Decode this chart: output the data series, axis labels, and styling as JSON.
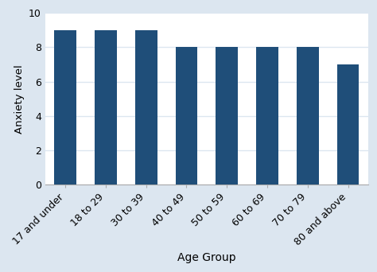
{
  "categories": [
    "17 and under",
    "18 to 29",
    "30 to 39",
    "40 to 49",
    "50 to 59",
    "60 to 69",
    "70 to 79",
    "80 and above"
  ],
  "values": [
    9,
    9,
    9,
    8,
    8,
    8,
    8,
    7
  ],
  "bar_color": "#1f4e79",
  "xlabel": "Age Group",
  "ylabel": "Anxiety level",
  "ylim": [
    0,
    10
  ],
  "yticks": [
    0,
    2,
    4,
    6,
    8,
    10
  ],
  "figure_background_color": "#dce6f0",
  "plot_background_color": "#ffffff",
  "grid_color": "#dce6f0",
  "xlabel_fontsize": 10,
  "ylabel_fontsize": 9.5,
  "tick_fontsize": 9,
  "bar_width": 0.55
}
